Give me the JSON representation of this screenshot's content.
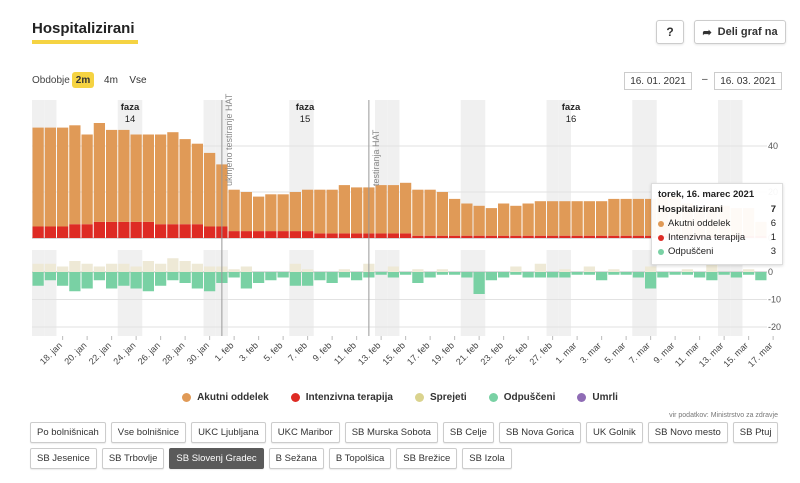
{
  "header": {
    "title": "Hospitalizirani",
    "help_label": "?",
    "share_label": "Deli graf na"
  },
  "period": {
    "label": "Obdobje",
    "options": [
      "2m",
      "4m",
      "Vse"
    ],
    "active": "2m",
    "date_from": "16. 01. 2021",
    "date_sep": "–",
    "date_to": "16. 03. 2021"
  },
  "tooltip": {
    "title": "torek, 16. marec 2021",
    "rows": [
      {
        "label": "Hospitalizirani",
        "value": "7",
        "bold": true,
        "color": ""
      },
      {
        "label": "Akutni oddelek",
        "value": "6",
        "bold": false,
        "color": "#e09a57"
      },
      {
        "label": "Intenzivna terapija",
        "value": "1",
        "bold": false,
        "color": "#de2b24"
      },
      {
        "label": "Odpuščeni",
        "value": "3",
        "bold": false,
        "color": "#79d1a4"
      }
    ]
  },
  "legend": [
    {
      "label": "Akutni oddelek",
      "color": "#e09a57"
    },
    {
      "label": "Intenzivna terapija",
      "color": "#de2b24"
    },
    {
      "label": "Sprejeti",
      "color": "#dad38e"
    },
    {
      "label": "Odpuščeni",
      "color": "#79d1a4"
    },
    {
      "label": "Umrli",
      "color": "#8f6cb5"
    }
  ],
  "source": "vir podatkov: Ministrstvo za zdravje",
  "hospitals": [
    "Po bolnišnicah",
    "Vse bolnišnice",
    "UKC Ljubljana",
    "UKC Maribor",
    "SB Murska Sobota",
    "SB Celje",
    "SB Nova Gorica",
    "UK Golnik",
    "SB Novo mesto",
    "SB Ptuj",
    "SB Jesenice",
    "SB Trbovlje",
    "SB Slovenj Gradec",
    "B Sežana",
    "B Topolšica",
    "SB Brežice",
    "SB Izola"
  ],
  "selected_hospital": "SB Slovenj Gradec",
  "chart_data": {
    "type": "bar",
    "dates": [
      "2021-01-16",
      "2021-01-17",
      "2021-01-18",
      "2021-01-19",
      "2021-01-20",
      "2021-01-21",
      "2021-01-22",
      "2021-01-23",
      "2021-01-24",
      "2021-01-25",
      "2021-01-26",
      "2021-01-27",
      "2021-01-28",
      "2021-01-29",
      "2021-01-30",
      "2021-01-31",
      "2021-02-01",
      "2021-02-02",
      "2021-02-03",
      "2021-02-04",
      "2021-02-05",
      "2021-02-06",
      "2021-02-07",
      "2021-02-08",
      "2021-02-09",
      "2021-02-10",
      "2021-02-11",
      "2021-02-12",
      "2021-02-13",
      "2021-02-14",
      "2021-02-15",
      "2021-02-16",
      "2021-02-17",
      "2021-02-18",
      "2021-02-19",
      "2021-02-20",
      "2021-02-21",
      "2021-02-22",
      "2021-02-23",
      "2021-02-24",
      "2021-02-25",
      "2021-02-26",
      "2021-02-27",
      "2021-02-28",
      "2021-03-01",
      "2021-03-02",
      "2021-03-03",
      "2021-03-04",
      "2021-03-05",
      "2021-03-06",
      "2021-03-07",
      "2021-03-08",
      "2021-03-09",
      "2021-03-10",
      "2021-03-11",
      "2021-03-12",
      "2021-03-13",
      "2021-03-14",
      "2021-03-15",
      "2021-03-16"
    ],
    "x_tick_labels": [
      "18. jan",
      "20. jan",
      "22. jan",
      "24. jan",
      "26. jan",
      "28. jan",
      "30. jan",
      "1. feb",
      "3. feb",
      "5. feb",
      "7. feb",
      "9. feb",
      "11. feb",
      "13. feb",
      "15. feb",
      "17. feb",
      "19. feb",
      "21. feb",
      "23. feb",
      "25. feb",
      "27. feb",
      "1. mar",
      "3. mar",
      "5. mar",
      "7. mar",
      "9. mar",
      "11. mar",
      "13. mar",
      "15. mar",
      "17. mar"
    ],
    "top": {
      "y_ticks": [
        0,
        20,
        40
      ],
      "series": [
        {
          "name": "Akutni oddelek",
          "color": "#e09a57",
          "values": [
            43,
            43,
            43,
            43,
            39,
            43,
            40,
            40,
            38,
            38,
            39,
            40,
            37,
            35,
            32,
            27,
            18,
            17,
            15,
            16,
            16,
            17,
            18,
            19,
            19,
            21,
            20,
            20,
            21,
            21,
            22,
            20,
            20,
            19,
            16,
            14,
            13,
            12,
            14,
            13,
            14,
            15,
            15,
            15,
            15,
            15,
            15,
            16,
            16,
            16,
            16,
            17,
            17,
            14,
            12,
            13,
            13,
            12,
            12,
            6
          ]
        },
        {
          "name": "Intenzivna terapija",
          "color": "#de2b24",
          "values": [
            5,
            5,
            5,
            6,
            6,
            7,
            7,
            7,
            7,
            7,
            6,
            6,
            6,
            6,
            5,
            5,
            3,
            3,
            3,
            3,
            3,
            3,
            3,
            2,
            2,
            2,
            2,
            2,
            2,
            2,
            2,
            1,
            1,
            1,
            1,
            1,
            1,
            1,
            1,
            1,
            1,
            1,
            1,
            1,
            1,
            1,
            1,
            1,
            1,
            1,
            1,
            1,
            1,
            1,
            1,
            1,
            1,
            1,
            1,
            1
          ]
        }
      ]
    },
    "bottom": {
      "y_ticks": [
        -20,
        -10,
        0
      ],
      "series": [
        {
          "name": "Sprejeti",
          "color": "#dad38e",
          "values": [
            3,
            3,
            2,
            4,
            3,
            2,
            3,
            3,
            2,
            4,
            3,
            5,
            4,
            3,
            2,
            2,
            1,
            2,
            0,
            0,
            0,
            3,
            1,
            0,
            0,
            1,
            0,
            3,
            0,
            2,
            0,
            1,
            0,
            1,
            0,
            0,
            0,
            0,
            0,
            2,
            0,
            3,
            0,
            1,
            0,
            2,
            0,
            1,
            0,
            0,
            2,
            0,
            0,
            1,
            0,
            3,
            0,
            0,
            1,
            0
          ]
        },
        {
          "name": "Odpuščeni",
          "color": "#79d1a4",
          "values": [
            -5,
            -3,
            -5,
            -7,
            -6,
            -3,
            -6,
            -5,
            -6,
            -7,
            -5,
            -3,
            -4,
            -6,
            -7,
            -4,
            -2,
            -6,
            -4,
            -3,
            -2,
            -5,
            -5,
            -3,
            -4,
            -2,
            -3,
            -2,
            -1,
            -2,
            -1,
            -4,
            -2,
            -1,
            -1,
            -2,
            -8,
            -3,
            -2,
            -1,
            -2,
            -2,
            -2,
            -2,
            -1,
            -1,
            -3,
            -1,
            -1,
            -2,
            -6,
            -2,
            -1,
            -1,
            -2,
            -3,
            -1,
            -2,
            -1,
            -3
          ]
        }
      ]
    },
    "phases": [
      {
        "label": "faza",
        "number": "14"
      },
      {
        "label": "faza",
        "number": "15"
      },
      {
        "label": "faza",
        "number": "16"
      }
    ],
    "markers": [
      {
        "date": "2021-01-31",
        "label": "ukinjeno testiranje HAT"
      },
      {
        "date": "2021-02-12",
        "label": "testiranja HAT"
      }
    ]
  }
}
